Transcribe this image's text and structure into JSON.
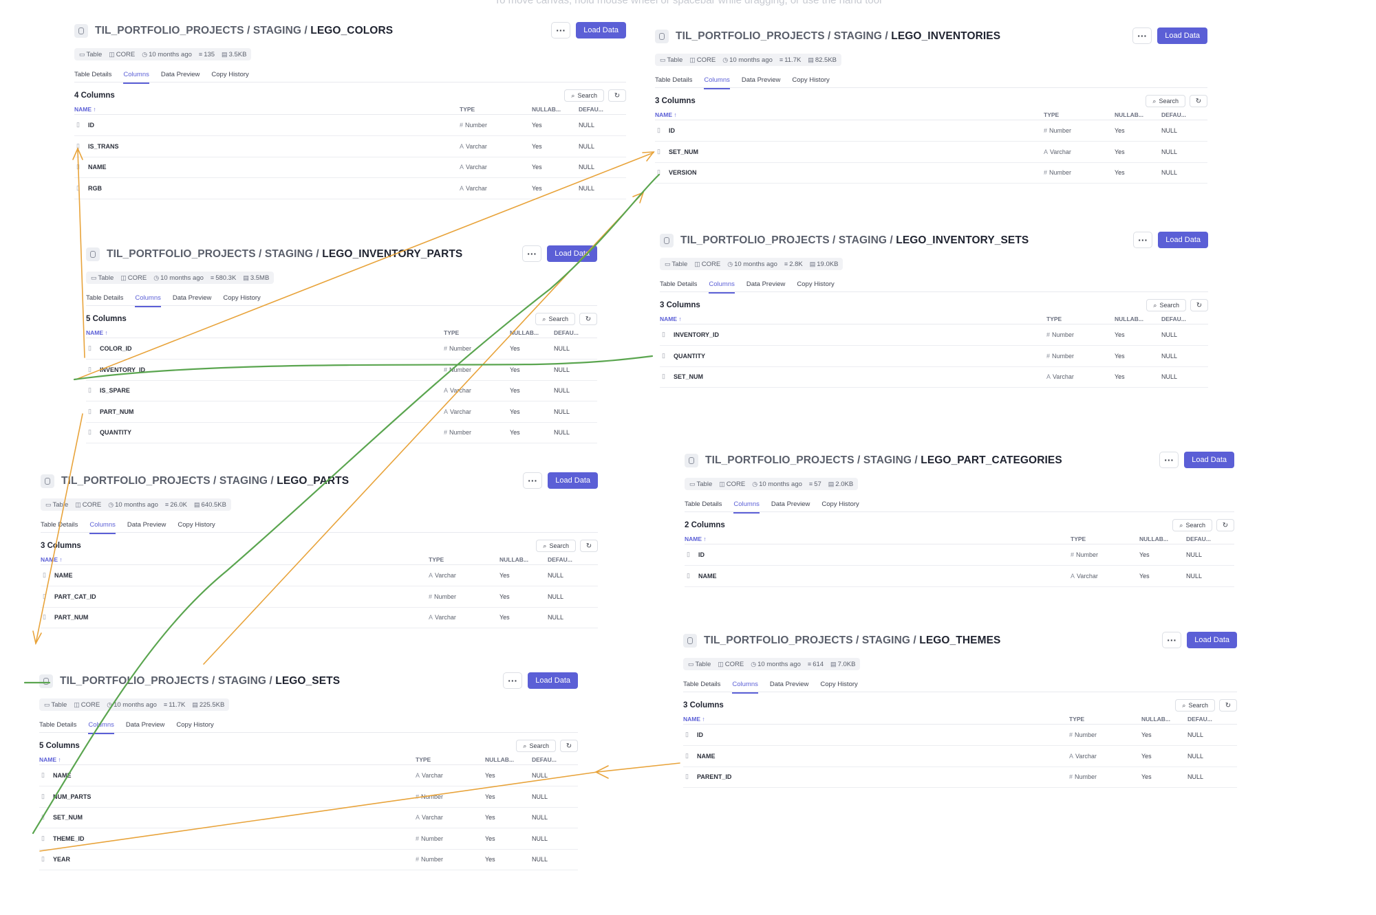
{
  "canvas_hint": "To move canvas, hold mouse wheel or spacebar while dragging, or use the hand tool",
  "common": {
    "breadcrumb": "TIL_PORTFOLIO_PROJECTS / STAGING / ",
    "more_label": "···",
    "load_label": "Load Data",
    "tabs": [
      "Table Details",
      "Columns",
      "Data Preview",
      "Copy History"
    ],
    "search_label": "Search",
    "headers": {
      "name": "NAME ↑",
      "type": "TYPE",
      "nullable": "NULLAB...",
      "default": "DEFAU..."
    },
    "meta_kind": "Table",
    "meta_schema": "CORE",
    "meta_age": "10 months ago"
  },
  "colors": {
    "accent": "#5b5fd6",
    "orange_arrow": "#e8a33a",
    "green_arrow": "#5aa54f"
  },
  "tables": [
    {
      "id": "lego-colors",
      "name": "LEGO_COLORS",
      "rows_count": "135",
      "size": "3.5KB",
      "column_count": "4 Columns",
      "columns": [
        {
          "name": "ID",
          "type": "Number",
          "nullable": "Yes",
          "default": "NULL"
        },
        {
          "name": "IS_TRANS",
          "type": "Varchar",
          "nullable": "Yes",
          "default": "NULL"
        },
        {
          "name": "NAME",
          "type": "Varchar",
          "nullable": "Yes",
          "default": "NULL"
        },
        {
          "name": "RGB",
          "type": "Varchar",
          "nullable": "Yes",
          "default": "NULL"
        }
      ]
    },
    {
      "id": "lego-inventories",
      "name": "LEGO_INVENTORIES",
      "rows_count": "11.7K",
      "size": "82.5KB",
      "column_count": "3 Columns",
      "columns": [
        {
          "name": "ID",
          "type": "Number",
          "nullable": "Yes",
          "default": "NULL"
        },
        {
          "name": "SET_NUM",
          "type": "Varchar",
          "nullable": "Yes",
          "default": "NULL"
        },
        {
          "name": "VERSION",
          "type": "Number",
          "nullable": "Yes",
          "default": "NULL"
        }
      ]
    },
    {
      "id": "lego-inventory-parts",
      "name": "LEGO_INVENTORY_PARTS",
      "rows_count": "580.3K",
      "size": "3.5MB",
      "column_count": "5 Columns",
      "columns": [
        {
          "name": "COLOR_ID",
          "type": "Number",
          "nullable": "Yes",
          "default": "NULL"
        },
        {
          "name": "INVENTORY_ID",
          "type": "Number",
          "nullable": "Yes",
          "default": "NULL"
        },
        {
          "name": "IS_SPARE",
          "type": "Varchar",
          "nullable": "Yes",
          "default": "NULL"
        },
        {
          "name": "PART_NUM",
          "type": "Varchar",
          "nullable": "Yes",
          "default": "NULL"
        },
        {
          "name": "QUANTITY",
          "type": "Number",
          "nullable": "Yes",
          "default": "NULL"
        }
      ]
    },
    {
      "id": "lego-inventory-sets",
      "name": "LEGO_INVENTORY_SETS",
      "rows_count": "2.8K",
      "size": "19.0KB",
      "column_count": "3 Columns",
      "columns": [
        {
          "name": "INVENTORY_ID",
          "type": "Number",
          "nullable": "Yes",
          "default": "NULL"
        },
        {
          "name": "QUANTITY",
          "type": "Number",
          "nullable": "Yes",
          "default": "NULL"
        },
        {
          "name": "SET_NUM",
          "type": "Varchar",
          "nullable": "Yes",
          "default": "NULL"
        }
      ]
    },
    {
      "id": "lego-parts",
      "name": "LEGO_PARTS",
      "rows_count": "26.0K",
      "size": "640.5KB",
      "column_count": "3 Columns",
      "columns": [
        {
          "name": "NAME",
          "type": "Varchar",
          "nullable": "Yes",
          "default": "NULL"
        },
        {
          "name": "PART_CAT_ID",
          "type": "Number",
          "nullable": "Yes",
          "default": "NULL"
        },
        {
          "name": "PART_NUM",
          "type": "Varchar",
          "nullable": "Yes",
          "default": "NULL"
        }
      ]
    },
    {
      "id": "lego-part-categories",
      "name": "LEGO_PART_CATEGORIES",
      "rows_count": "57",
      "size": "2.0KB",
      "column_count": "2 Columns",
      "columns": [
        {
          "name": "ID",
          "type": "Number",
          "nullable": "Yes",
          "default": "NULL"
        },
        {
          "name": "NAME",
          "type": "Varchar",
          "nullable": "Yes",
          "default": "NULL"
        }
      ]
    },
    {
      "id": "lego-themes",
      "name": "LEGO_THEMES",
      "rows_count": "614",
      "size": "7.0KB",
      "column_count": "3 Columns",
      "columns": [
        {
          "name": "ID",
          "type": "Number",
          "nullable": "Yes",
          "default": "NULL"
        },
        {
          "name": "NAME",
          "type": "Varchar",
          "nullable": "Yes",
          "default": "NULL"
        },
        {
          "name": "PARENT_ID",
          "type": "Number",
          "nullable": "Yes",
          "default": "NULL"
        }
      ]
    },
    {
      "id": "lego-sets",
      "name": "LEGO_SETS",
      "rows_count": "11.7K",
      "size": "225.5KB",
      "column_count": "5 Columns",
      "columns": [
        {
          "name": "NAME",
          "type": "Varchar",
          "nullable": "Yes",
          "default": "NULL"
        },
        {
          "name": "NUM_PARTS",
          "type": "Number",
          "nullable": "Yes",
          "default": "NULL"
        },
        {
          "name": "SET_NUM",
          "type": "Varchar",
          "nullable": "Yes",
          "default": "NULL"
        },
        {
          "name": "THEME_ID",
          "type": "Number",
          "nullable": "Yes",
          "default": "NULL"
        },
        {
          "name": "YEAR",
          "type": "Number",
          "nullable": "Yes",
          "default": "NULL"
        }
      ]
    }
  ]
}
